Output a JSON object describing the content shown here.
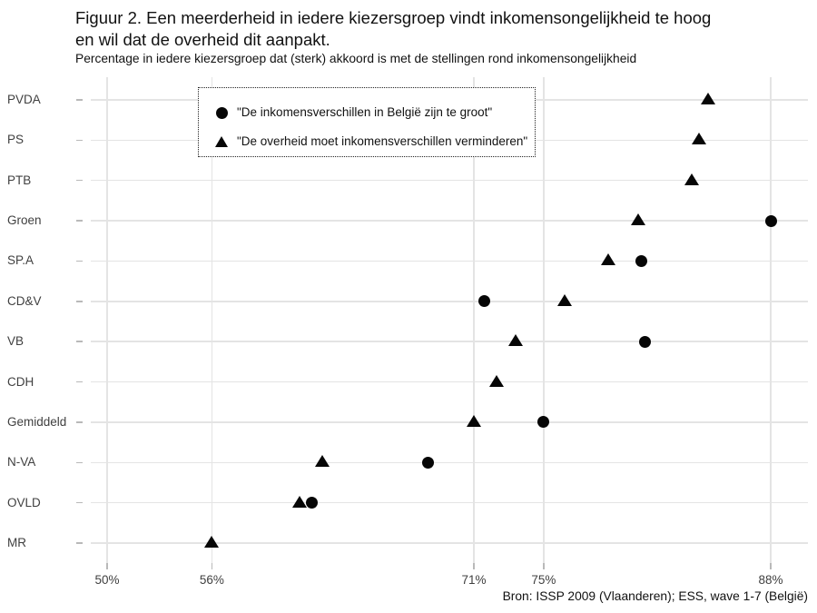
{
  "title": {
    "lines": [
      "Figuur 2. Een meerderheid in iedere kiezersgroep vindt inkomensongelijkheid te hoog",
      "en wil dat de overheid dit aanpakt."
    ]
  },
  "subtitle": "Percentage in iedere kiezersgroep dat (sterk) akkoord is met de stellingen rond inkomensongelijkheid",
  "legend": {
    "items": [
      {
        "marker": "circle",
        "label": "\"De inkomensverschillen in België zijn te groot\""
      },
      {
        "marker": "triangle",
        "label": "\"De overheid moet inkomensverschillen verminderen\""
      }
    ]
  },
  "source": "Bron: ISSP 2009 (Vlaanderen); ESS, wave 1-7 (België)",
  "colors": {
    "point": "#060606",
    "grid": "#e4e4e4",
    "tick": "#b9b9b9",
    "axis_text": "#404040",
    "text": "#111111"
  },
  "chart_data": {
    "type": "scatter",
    "variant": "horizontal-dotplot",
    "title": "Figuur 2. Een meerderheid in iedere kiezersgroep vindt inkomensongelijkheid te hoog en wil dat de overheid dit aanpakt.",
    "subtitle": "Percentage in iedere kiezersgroep dat (sterk) akkoord is met de stellingen rond inkomensongelijkheid",
    "categories": [
      "PVDA",
      "PS",
      "PTB",
      "Groen",
      "SP.A",
      "CD&V",
      "VB",
      "CDH",
      "Gemiddeld",
      "N-VA",
      "OVLD",
      "MR"
    ],
    "series": [
      {
        "name": "\"De inkomensverschillen in België zijn te groot\"",
        "marker": "circle",
        "values": [
          null,
          null,
          null,
          88,
          80.6,
          71.6,
          80.8,
          null,
          75,
          68.4,
          61.7,
          null
        ]
      },
      {
        "name": "\"De overheid moet inkomensverschillen verminderen\"",
        "marker": "triangle",
        "values": [
          84.4,
          83.9,
          83.5,
          80.4,
          78.7,
          76.2,
          73.4,
          72.3,
          71,
          62.3,
          61,
          56
        ]
      }
    ],
    "x_ticks": {
      "values": [
        50,
        56,
        71,
        75,
        88
      ],
      "labels": [
        "50%",
        "56%",
        "71%",
        "75%",
        "88%"
      ]
    },
    "xlim": [
      48.5,
      90.2
    ],
    "grid": true,
    "legend_position": "top-left-inside",
    "xlabel": "",
    "ylabel": ""
  }
}
